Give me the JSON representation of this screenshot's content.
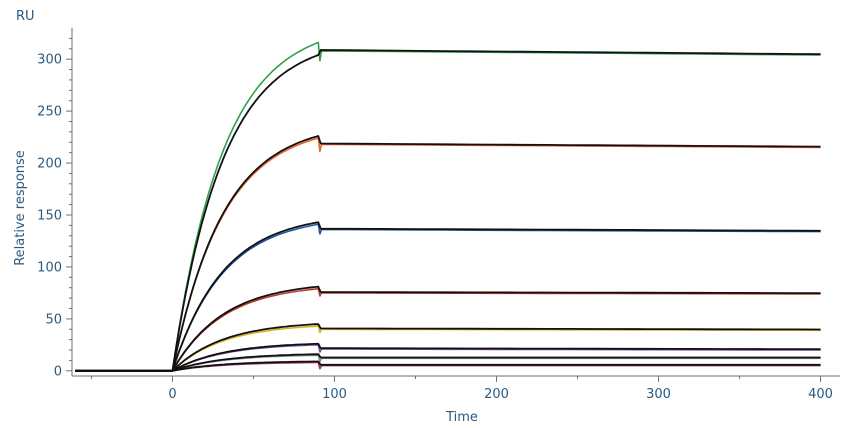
{
  "chart_data": {
    "type": "line",
    "unit_label": "RU",
    "xlabel": "Time",
    "ylabel": "Relative response",
    "xlim": [
      -62,
      412
    ],
    "ylim": [
      -5,
      330
    ],
    "x_ticks": [
      0,
      100,
      200,
      300,
      400
    ],
    "x_tick_labels": [
      "0",
      "100",
      "200",
      "300",
      "400"
    ],
    "y_ticks": [
      0,
      50,
      100,
      150,
      200,
      250,
      300
    ],
    "y_tick_labels": [
      "0",
      "50",
      "100",
      "150",
      "200",
      "250",
      "300"
    ],
    "grid": false,
    "legend": "none",
    "phases": {
      "baseline_start": -60,
      "injection_start": 0,
      "injection_end": 90,
      "dissociation_end": 400
    },
    "series": [
      {
        "color": "#2fa14a",
        "association_end": 316,
        "dissociation_start": 308,
        "dissociation_end": 304,
        "fit_association_end": 304
      },
      {
        "color": "#e8622c",
        "association_end": 224,
        "dissociation_start": 218,
        "dissociation_end": 215,
        "fit_association_end": 226
      },
      {
        "color": "#2556a6",
        "association_end": 141,
        "dissociation_start": 136,
        "dissociation_end": 134,
        "fit_association_end": 143
      },
      {
        "color": "#c0392b",
        "association_end": 79,
        "dissociation_start": 75,
        "dissociation_end": 74,
        "fit_association_end": 81
      },
      {
        "color": "#d8b020",
        "association_end": 43,
        "dissociation_start": 40,
        "dissociation_end": 39,
        "fit_association_end": 45
      },
      {
        "color": "#7b4aa0",
        "association_end": 25,
        "dissociation_start": 21,
        "dissociation_end": 20,
        "fit_association_end": 26
      },
      {
        "color": "#8a8a8a",
        "association_end": 15,
        "dissociation_start": 12,
        "dissociation_end": 12,
        "fit_association_end": 16
      },
      {
        "color": "#a0306a",
        "association_end": 8,
        "dissociation_start": 5,
        "dissociation_end": 5,
        "fit_association_end": 9
      }
    ]
  }
}
